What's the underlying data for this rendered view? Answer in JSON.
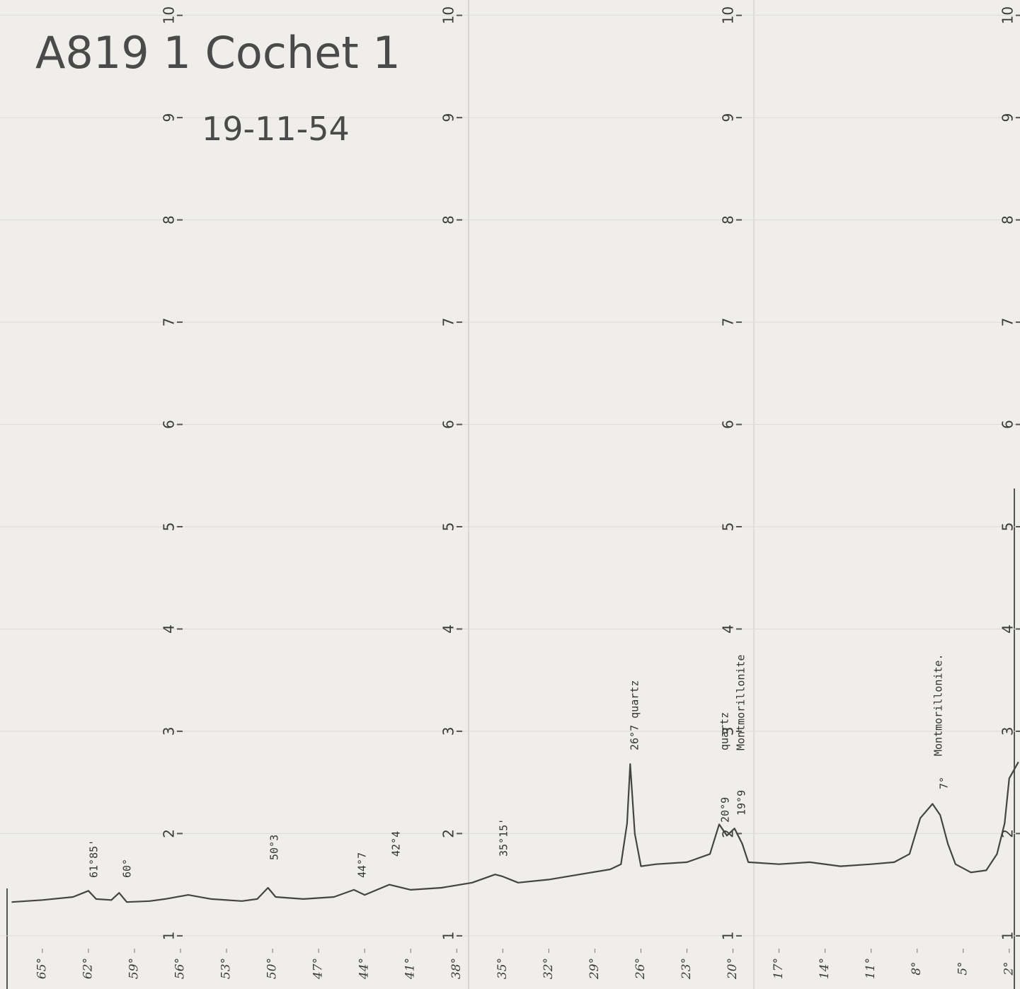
{
  "chart_data": {
    "type": "line",
    "title": "A819 1 Cochet 1",
    "subtitle": "19-11-54",
    "xlim": [
      67.3,
      1.3
    ],
    "ylim": [
      0.48,
      10.15
    ],
    "xticks": [
      {
        "value": 65,
        "label": "65°"
      },
      {
        "value": 62,
        "label": "62°"
      },
      {
        "value": 59,
        "label": "59°"
      },
      {
        "value": 56,
        "label": "56°"
      },
      {
        "value": 53,
        "label": "53°"
      },
      {
        "value": 50,
        "label": "50°"
      },
      {
        "value": 47,
        "label": "47°"
      },
      {
        "value": 44,
        "label": "44°"
      },
      {
        "value": 41,
        "label": "41°"
      },
      {
        "value": 38,
        "label": "38°"
      },
      {
        "value": 35,
        "label": "35°"
      },
      {
        "value": 32,
        "label": "32°"
      },
      {
        "value": 29,
        "label": "29°"
      },
      {
        "value": 26,
        "label": "26°"
      },
      {
        "value": 23,
        "label": "23°"
      },
      {
        "value": 20,
        "label": "20°"
      },
      {
        "value": 17,
        "label": "17°"
      },
      {
        "value": 14,
        "label": "14°"
      },
      {
        "value": 11,
        "label": "11°"
      },
      {
        "value": 8,
        "label": "8°"
      },
      {
        "value": 5,
        "label": "5°"
      },
      {
        "value": 2,
        "label": "2°"
      }
    ],
    "yticks": [
      1,
      2,
      3,
      4,
      5,
      6,
      7,
      8,
      9,
      10
    ],
    "grid": true,
    "color": "#444444",
    "x": [
      67,
      65,
      63,
      62,
      61.5,
      60.5,
      60,
      59.5,
      58,
      57,
      55.5,
      54,
      52,
      51,
      50.3,
      49.8,
      48,
      46,
      44.7,
      44,
      42.4,
      41,
      39,
      37,
      35.5,
      35,
      34,
      32,
      30,
      28,
      27.3,
      26.9,
      26.7,
      26.4,
      26,
      25,
      23,
      21.5,
      20.9,
      20.4,
      19.9,
      19.4,
      19,
      17,
      15,
      13,
      11,
      9.5,
      8.5,
      7.8,
      7,
      6.5,
      6,
      5.5,
      4.5,
      3.5,
      2.8,
      2.3,
      2,
      1.4
    ],
    "values": [
      1.33,
      1.35,
      1.38,
      1.44,
      1.36,
      1.35,
      1.42,
      1.33,
      1.34,
      1.36,
      1.4,
      1.36,
      1.34,
      1.36,
      1.47,
      1.38,
      1.36,
      1.38,
      1.45,
      1.4,
      1.5,
      1.45,
      1.47,
      1.52,
      1.6,
      1.58,
      1.52,
      1.55,
      1.6,
      1.65,
      1.7,
      2.1,
      2.68,
      2.0,
      1.68,
      1.7,
      1.72,
      1.8,
      2.09,
      1.98,
      2.05,
      1.9,
      1.72,
      1.7,
      1.72,
      1.68,
      1.7,
      1.72,
      1.8,
      2.15,
      2.29,
      2.18,
      1.9,
      1.7,
      1.62,
      1.64,
      1.8,
      2.1,
      2.54,
      2.7
    ],
    "annotations": [
      "61°85'",
      "60°",
      "50°3",
      "44°7",
      "42°4",
      "35°15'",
      "26°7 quartz",
      "quartz",
      "Montmorillonite",
      "20°9",
      "19°9",
      "7°",
      "Montmorillonite."
    ]
  }
}
